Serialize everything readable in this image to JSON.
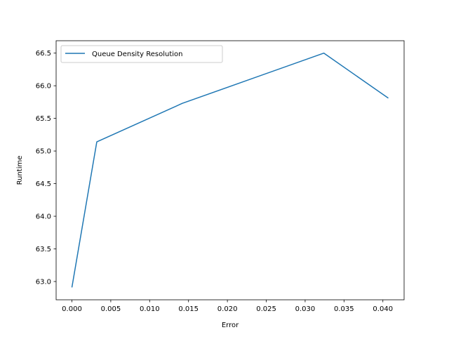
{
  "chart_data": {
    "type": "line",
    "title": "",
    "xlabel": "Error",
    "ylabel": "Runtime",
    "xlim": [
      -0.00203,
      0.04273
    ],
    "ylim": [
      62.72,
      66.69
    ],
    "grid": false,
    "legend_position": "top-left",
    "x_ticks": [
      0.0,
      0.005,
      0.01,
      0.015,
      0.02,
      0.025,
      0.03,
      0.035,
      0.04
    ],
    "x_tick_labels": [
      "0.000",
      "0.005",
      "0.010",
      "0.015",
      "0.020",
      "0.025",
      "0.030",
      "0.035",
      "0.040"
    ],
    "y_ticks": [
      63.0,
      63.5,
      64.0,
      64.5,
      65.0,
      65.5,
      66.0,
      66.5
    ],
    "y_tick_labels": [
      "63.0",
      "63.5",
      "64.0",
      "64.5",
      "65.0",
      "65.5",
      "66.0",
      "66.5"
    ],
    "series": [
      {
        "name": "Queue Density Resolution",
        "color": "#1f77b4",
        "x": [
          0.0,
          0.0032,
          0.0142,
          0.0324,
          0.0407
        ],
        "y": [
          62.91,
          65.14,
          65.73,
          66.5,
          65.81
        ]
      }
    ]
  }
}
